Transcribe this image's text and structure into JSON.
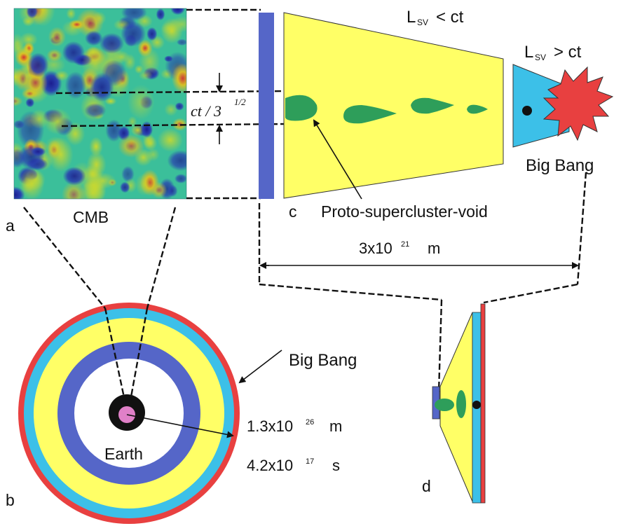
{
  "panels": {
    "a": {
      "letter": "a",
      "label": "CMB"
    },
    "b": {
      "letter": "b",
      "big_bang": "Big Bang",
      "earth": "Earth",
      "radius_base": "1.3x10",
      "radius_exp": "26",
      "radius_unit": "m",
      "time_base": "4.2x10",
      "time_exp": "17",
      "time_unit": "s"
    },
    "c": {
      "letter": "c",
      "proto": "Proto-supercluster-void",
      "lsv_lt": {
        "L": "L",
        "sub": "SV",
        "rel": "< ct"
      },
      "lsv_gt": {
        "L": "L",
        "sub": "SV",
        "rel": "> ct"
      },
      "big_bang": "Big Bang",
      "distance_base": "3x10",
      "distance_exp": "21",
      "distance_unit": "m",
      "ct_text": "ct / 3",
      "ct_exp": "1/2"
    },
    "d": {
      "letter": "d"
    }
  },
  "colors": {
    "yellow": "#ffff66",
    "cyan": "#3cc0e8",
    "blue": "#5566c8",
    "red": "#e84040",
    "green": "#2e9e5a",
    "pink": "#e080c8",
    "black": "#111111"
  }
}
